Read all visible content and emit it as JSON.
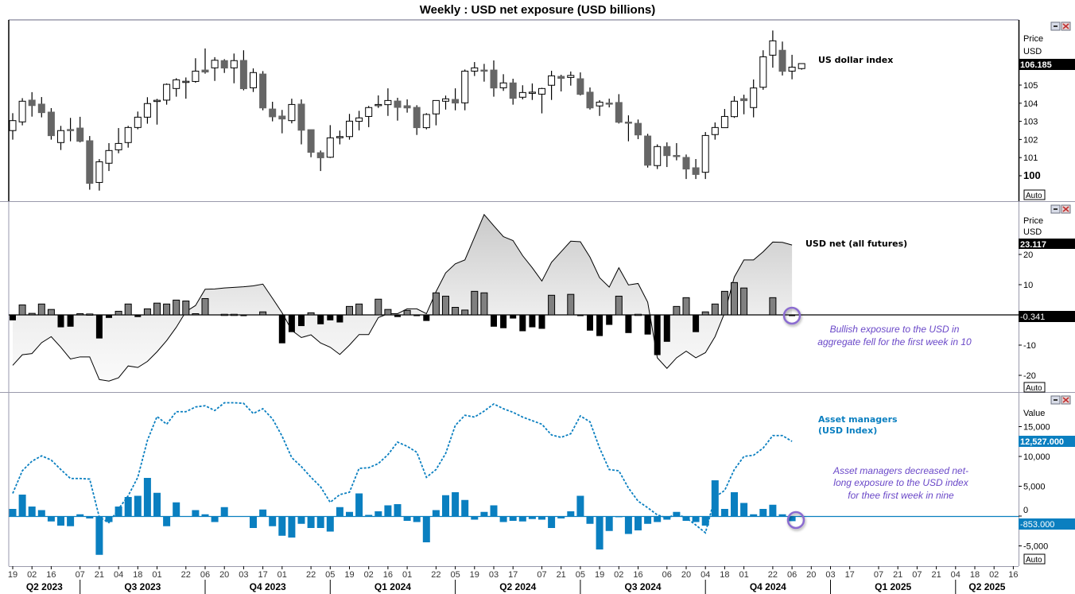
{
  "title": "Weekly : USD net exposure (USD billions)",
  "panels": {
    "price": {
      "series_label": "US dollar index",
      "axis_title": "Price",
      "axis_unit": "USD",
      "last_value": "106.185",
      "auto": "Auto"
    },
    "usd_net": {
      "series_label": "USD net (all futures)",
      "axis_title": "Price",
      "axis_unit": "USD",
      "last_line_value": "23.117",
      "last_bar_value": "-0.341",
      "auto": "Auto",
      "annotation": [
        "Bullish exposure to the USD in",
        "aggregate fell for the first week in 10"
      ]
    },
    "asset_managers": {
      "series_label": [
        "Asset managers",
        "(USD Index)"
      ],
      "axis_title": "Value",
      "last_line_value": "12,527.000",
      "last_bar_value": "-853.000",
      "auto": "Auto",
      "annotation": [
        "Asset managers decreased net-",
        "long exposure to the USD index",
        "for thee first week in nine"
      ]
    }
  },
  "colors": {
    "bear_candle": "#666666",
    "bull_candle": "#ffffff",
    "net_bar_pos": "#808080",
    "net_bar_neg": "#000000",
    "asset_blue": "#0a7fc0",
    "annotation": "#6a48c8"
  },
  "x_axis": {
    "ticks": [
      {
        "i": 0,
        "label": "19"
      },
      {
        "i": 2,
        "label": "02"
      },
      {
        "i": 4,
        "label": "16"
      },
      {
        "i": 7,
        "label": "07"
      },
      {
        "i": 9,
        "label": "21"
      },
      {
        "i": 11,
        "label": "04"
      },
      {
        "i": 13,
        "label": "18"
      },
      {
        "i": 15,
        "label": "01"
      },
      {
        "i": 18,
        "label": "22"
      },
      {
        "i": 20,
        "label": "06"
      },
      {
        "i": 22,
        "label": "20"
      },
      {
        "i": 24,
        "label": "03"
      },
      {
        "i": 26,
        "label": "17"
      },
      {
        "i": 28,
        "label": "01"
      },
      {
        "i": 31,
        "label": "22"
      },
      {
        "i": 33,
        "label": "05"
      },
      {
        "i": 35,
        "label": "19"
      },
      {
        "i": 37,
        "label": "02"
      },
      {
        "i": 39,
        "label": "16"
      },
      {
        "i": 41,
        "label": "01"
      },
      {
        "i": 44,
        "label": "22"
      },
      {
        "i": 46,
        "label": "05"
      },
      {
        "i": 48,
        "label": "19"
      },
      {
        "i": 50,
        "label": "03"
      },
      {
        "i": 52,
        "label": "17"
      },
      {
        "i": 55,
        "label": "07"
      },
      {
        "i": 57,
        "label": "21"
      },
      {
        "i": 59,
        "label": "05"
      },
      {
        "i": 61,
        "label": "19"
      },
      {
        "i": 63,
        "label": "02"
      },
      {
        "i": 65,
        "label": "16"
      },
      {
        "i": 68,
        "label": "06"
      },
      {
        "i": 70,
        "label": "20"
      },
      {
        "i": 72,
        "label": "04"
      },
      {
        "i": 74,
        "label": "18"
      },
      {
        "i": 76,
        "label": "01"
      },
      {
        "i": 79,
        "label": "22"
      },
      {
        "i": 81,
        "label": "06"
      },
      {
        "i": 83,
        "label": "20"
      },
      {
        "i": 85,
        "label": "03"
      },
      {
        "i": 87,
        "label": "17"
      },
      {
        "i": 90,
        "label": "07"
      },
      {
        "i": 92,
        "label": "21"
      },
      {
        "i": 94,
        "label": "07"
      },
      {
        "i": 96,
        "label": "21"
      },
      {
        "i": 98,
        "label": "04"
      },
      {
        "i": 100,
        "label": "18"
      },
      {
        "i": 102,
        "label": "02"
      },
      {
        "i": 104,
        "label": "16"
      }
    ],
    "quarters": [
      {
        "start": -1,
        "end": 7,
        "label": "Q2 2023"
      },
      {
        "start": 7,
        "end": 20,
        "label": "Q3 2023"
      },
      {
        "start": 20,
        "end": 33,
        "label": "Q4 2023"
      },
      {
        "start": 33,
        "end": 46,
        "label": "Q1 2024"
      },
      {
        "start": 46,
        "end": 59,
        "label": "Q2 2024"
      },
      {
        "start": 59,
        "end": 72,
        "label": "Q3 2024"
      },
      {
        "start": 72,
        "end": 85,
        "label": "Q4 2024"
      },
      {
        "start": 85,
        "end": 98,
        "label": "Q1 2025"
      },
      {
        "start": 98,
        "end": 105,
        "label": "Q2 2025"
      }
    ]
  },
  "chart_data": [
    {
      "type": "candlestick",
      "name": "US dollar index",
      "ylim": [
        99,
        108.5
      ],
      "yticks": [
        "105",
        "104",
        "103",
        "102",
        "101",
        "100"
      ],
      "ytick_values": [
        105,
        104,
        103,
        102,
        101,
        100
      ],
      "ohlc": [
        [
          102.49,
          103.45,
          101.99,
          103.04
        ],
        [
          102.97,
          104.28,
          102.78,
          104.11
        ],
        [
          104.17,
          104.61,
          103.26,
          103.87
        ],
        [
          103.95,
          104.34,
          103.22,
          103.48
        ],
        [
          103.51,
          103.73,
          101.99,
          102.21
        ],
        [
          101.83,
          102.75,
          101.42,
          102.49
        ],
        [
          102.55,
          103.19,
          101.9,
          102.53
        ],
        [
          102.63,
          103.25,
          101.84,
          101.9
        ],
        [
          101.93,
          102.19,
          99.23,
          99.58
        ],
        [
          99.63,
          100.92,
          99.18,
          100.77
        ],
        [
          100.69,
          101.8,
          100.26,
          101.39
        ],
        [
          101.43,
          102.63,
          101.24,
          101.78
        ],
        [
          101.83,
          102.75,
          101.55,
          102.66
        ],
        [
          102.66,
          103.54,
          102.56,
          103.23
        ],
        [
          103.23,
          104.33,
          102.87,
          103.98
        ],
        [
          104.14,
          104.24,
          102.82,
          104.16
        ],
        [
          104.17,
          105.09,
          103.92,
          105.04
        ],
        [
          104.81,
          105.38,
          104.36,
          105.29
        ],
        [
          105.19,
          105.42,
          104.25,
          105.21
        ],
        [
          105.2,
          106.48,
          105.13,
          105.77
        ],
        [
          105.83,
          107.02,
          105.63,
          105.72
        ],
        [
          105.95,
          106.54,
          105.23,
          106.37
        ],
        [
          106.35,
          106.43,
          105.67,
          105.94
        ],
        [
          105.95,
          106.74,
          105.1,
          106.35
        ],
        [
          106.36,
          106.92,
          104.71,
          104.8
        ],
        [
          104.85,
          105.92,
          104.62,
          105.69
        ],
        [
          105.61,
          105.77,
          103.61,
          103.74
        ],
        [
          103.68,
          104.08,
          103.0,
          103.25
        ],
        [
          103.29,
          103.63,
          102.34,
          103.13
        ],
        [
          103.04,
          104.25,
          102.89,
          103.93
        ],
        [
          103.95,
          104.21,
          101.73,
          102.51
        ],
        [
          102.54,
          102.54,
          101.02,
          101.29
        ],
        [
          101.27,
          101.39,
          100.26,
          100.99
        ],
        [
          101.02,
          102.79,
          100.98,
          102.09
        ],
        [
          102.15,
          102.49,
          101.73,
          102.16
        ],
        [
          102.16,
          103.41,
          101.99,
          103.01
        ],
        [
          103.0,
          103.58,
          102.5,
          103.19
        ],
        [
          103.27,
          103.85,
          102.68,
          103.76
        ],
        [
          103.91,
          104.43,
          103.74,
          103.93
        ],
        [
          103.92,
          104.82,
          103.3,
          104.15
        ],
        [
          104.12,
          104.3,
          103.04,
          103.77
        ],
        [
          103.86,
          104.21,
          103.48,
          103.74
        ],
        [
          103.77,
          103.89,
          102.25,
          102.65
        ],
        [
          102.65,
          103.45,
          102.56,
          103.38
        ],
        [
          103.41,
          104.15,
          102.78,
          104.15
        ],
        [
          104.11,
          104.42,
          103.65,
          104.24
        ],
        [
          104.21,
          104.82,
          103.61,
          104.01
        ],
        [
          104.02,
          105.86,
          103.61,
          105.77
        ],
        [
          105.77,
          106.27,
          105.5,
          105.95
        ],
        [
          105.83,
          106.17,
          105.19,
          105.77
        ],
        [
          105.83,
          106.36,
          104.36,
          104.84
        ],
        [
          104.85,
          105.6,
          104.68,
          105.12
        ],
        [
          105.12,
          105.35,
          103.92,
          104.27
        ],
        [
          104.33,
          104.99,
          104.21,
          104.59
        ],
        [
          104.59,
          105.09,
          104.18,
          104.61
        ],
        [
          104.5,
          104.85,
          103.44,
          104.81
        ],
        [
          104.99,
          105.79,
          104.18,
          105.51
        ],
        [
          105.48,
          105.57,
          104.65,
          105.37
        ],
        [
          105.42,
          105.75,
          104.97,
          105.53
        ],
        [
          105.35,
          105.7,
          104.43,
          104.49
        ],
        [
          104.61,
          104.87,
          103.65,
          103.74
        ],
        [
          103.85,
          104.17,
          103.3,
          104.06
        ],
        [
          104.01,
          104.25,
          103.77,
          104.0
        ],
        [
          104.04,
          104.5,
          102.88,
          102.95
        ],
        [
          102.96,
          103.33,
          101.9,
          102.95
        ],
        [
          102.89,
          103.1,
          102.02,
          102.25
        ],
        [
          102.19,
          102.31,
          100.45,
          100.58
        ],
        [
          100.56,
          101.73,
          100.37,
          101.61
        ],
        [
          101.61,
          101.84,
          100.48,
          101.11
        ],
        [
          101.12,
          101.8,
          100.85,
          101.1
        ],
        [
          101.01,
          101.17,
          99.82,
          100.37
        ],
        [
          100.44,
          100.92,
          99.82,
          100.07
        ],
        [
          100.19,
          102.41,
          99.82,
          102.22
        ],
        [
          102.27,
          102.94,
          101.99,
          102.66
        ],
        [
          102.65,
          103.68,
          102.65,
          103.27
        ],
        [
          103.26,
          104.39,
          103.19,
          104.11
        ],
        [
          104.25,
          104.47,
          103.39,
          104.14
        ],
        [
          103.76,
          105.31,
          103.22,
          104.84
        ],
        [
          104.88,
          106.92,
          104.74,
          106.56
        ],
        [
          106.65,
          108.01,
          105.96,
          107.44
        ],
        [
          106.92,
          107.4,
          105.53,
          105.76
        ],
        [
          105.77,
          106.67,
          105.32,
          105.99
        ],
        [
          105.91,
          106.19,
          105.85,
          106.185
        ]
      ]
    },
    {
      "type": "area+bar",
      "name": "USD net (all futures)",
      "ylabel": "USD billions",
      "ylim": [
        -24,
        36
      ],
      "yticks": [
        "20",
        "10",
        "-10",
        "-20"
      ],
      "ytick_values": [
        20,
        10,
        -10,
        -20
      ],
      "line": [
        -16.7,
        -13.2,
        -12.8,
        -9.2,
        -7.2,
        -10.7,
        -14.6,
        -13.9,
        -13.9,
        -21.4,
        -21.9,
        -20.8,
        -16.9,
        -17.4,
        -15.4,
        -12.2,
        -8.5,
        -4.1,
        1.1,
        3.1,
        8.5,
        8.6,
        8.9,
        9.1,
        9.3,
        9.6,
        10.2,
        5.5,
        0.7,
        -5.1,
        -7.5,
        -6.6,
        -9.3,
        -10.7,
        -13.1,
        -10.0,
        -6.5,
        -6.5,
        -0.9,
        0.4,
        0.4,
        2.0,
        2.0,
        0.4,
        7.7,
        13.9,
        16.9,
        18.2,
        25.7,
        33.2,
        29.5,
        25.9,
        24.6,
        19.6,
        15.6,
        11.2,
        17.4,
        20.9,
        24.4,
        24.2,
        19.1,
        12.3,
        9.2,
        15.6,
        9.9,
        10.4,
        4.2,
        -14.2,
        -17.7,
        -14.2,
        -12.0,
        -14.2,
        -12.5,
        -7.2,
        0.7,
        12.5,
        18.2,
        18.2,
        20.9,
        24.1,
        24.0,
        23.117
      ],
      "bars": [
        -1.8,
        3.3,
        0.5,
        3.6,
        1.8,
        -4.1,
        -3.9,
        0.4,
        0.3,
        -7.8,
        -1.0,
        1.2,
        3.6,
        -0.7,
        2.0,
        3.9,
        3.6,
        4.9,
        4.6,
        0.4,
        5.4,
        0,
        0.2,
        0.2,
        -0.3,
        0,
        1.0,
        0,
        -9.4,
        -5.7,
        -3.7,
        0.7,
        -3.1,
        -1.8,
        -2.5,
        2.8,
        3.6,
        0,
        5.2,
        1.8,
        -0.7,
        1.5,
        -0.1,
        -2.0,
        7.3,
        6.2,
        2.5,
        1.6,
        7.8,
        7.3,
        -3.9,
        -4.4,
        -1.2,
        -5.4,
        -4.1,
        -4.6,
        6.5,
        0,
        6.8,
        -0.2,
        -5.2,
        -7.0,
        -3.3,
        6.2,
        -6.0,
        0.2,
        -6.5,
        -13.3,
        -8.9,
        2.8,
        5.7,
        -5.7,
        1.0,
        3.6,
        7.8,
        10.7,
        8.9,
        0,
        0,
        5.7,
        0,
        -0.341
      ]
    },
    {
      "type": "line+bar",
      "name": "Asset managers (USD Index)",
      "ylim": [
        -8000,
        18000
      ],
      "yticks": [
        "15,000",
        "10,000",
        "5,000",
        "0",
        "-5,000"
      ],
      "ytick_values": [
        15000,
        10000,
        5000,
        0,
        -5000
      ],
      "line": [
        3800,
        7600,
        9200,
        10100,
        9400,
        7800,
        6300,
        6300,
        6200,
        -200,
        -1100,
        1200,
        3400,
        6500,
        12700,
        16700,
        15400,
        17500,
        17500,
        18300,
        18500,
        17700,
        19000,
        19000,
        18900,
        17200,
        18000,
        16300,
        13400,
        9800,
        8300,
        6500,
        4900,
        2300,
        3600,
        4000,
        8000,
        8100,
        8800,
        10300,
        12400,
        11700,
        10700,
        6500,
        7800,
        10500,
        15200,
        16900,
        16600,
        17600,
        18800,
        18000,
        17400,
        16600,
        16000,
        15400,
        13600,
        13200,
        13800,
        16800,
        15800,
        11400,
        7800,
        7600,
        4700,
        2500,
        1400,
        200,
        -300,
        300,
        -300,
        -1500,
        -2800,
        3200,
        4300,
        7800,
        10000,
        10200,
        11400,
        13500,
        13500,
        12527
      ],
      "bars": [
        1200,
        3600,
        1600,
        1000,
        -900,
        -1600,
        -1700,
        300,
        -400,
        -6500,
        -1000,
        1600,
        3200,
        3400,
        6400,
        3900,
        -1700,
        2300,
        0,
        1000,
        300,
        -1000,
        1500,
        0,
        0,
        -2000,
        1100,
        -1700,
        -3300,
        -3600,
        -1300,
        -2000,
        -2000,
        -2600,
        1500,
        700,
        3800,
        200,
        800,
        1800,
        2000,
        -800,
        -1000,
        -4400,
        1000,
        3500,
        4000,
        2700,
        -600,
        700,
        1800,
        -1000,
        -800,
        -900,
        -500,
        -600,
        -2000,
        -400,
        800,
        3400,
        -1300,
        -5600,
        -2500,
        -200,
        -3000,
        -2400,
        -1300,
        -1000,
        -600,
        700,
        -800,
        -1000,
        -1600,
        6000,
        1200,
        4000,
        2200,
        300,
        1200,
        1900,
        300,
        -853
      ]
    }
  ]
}
